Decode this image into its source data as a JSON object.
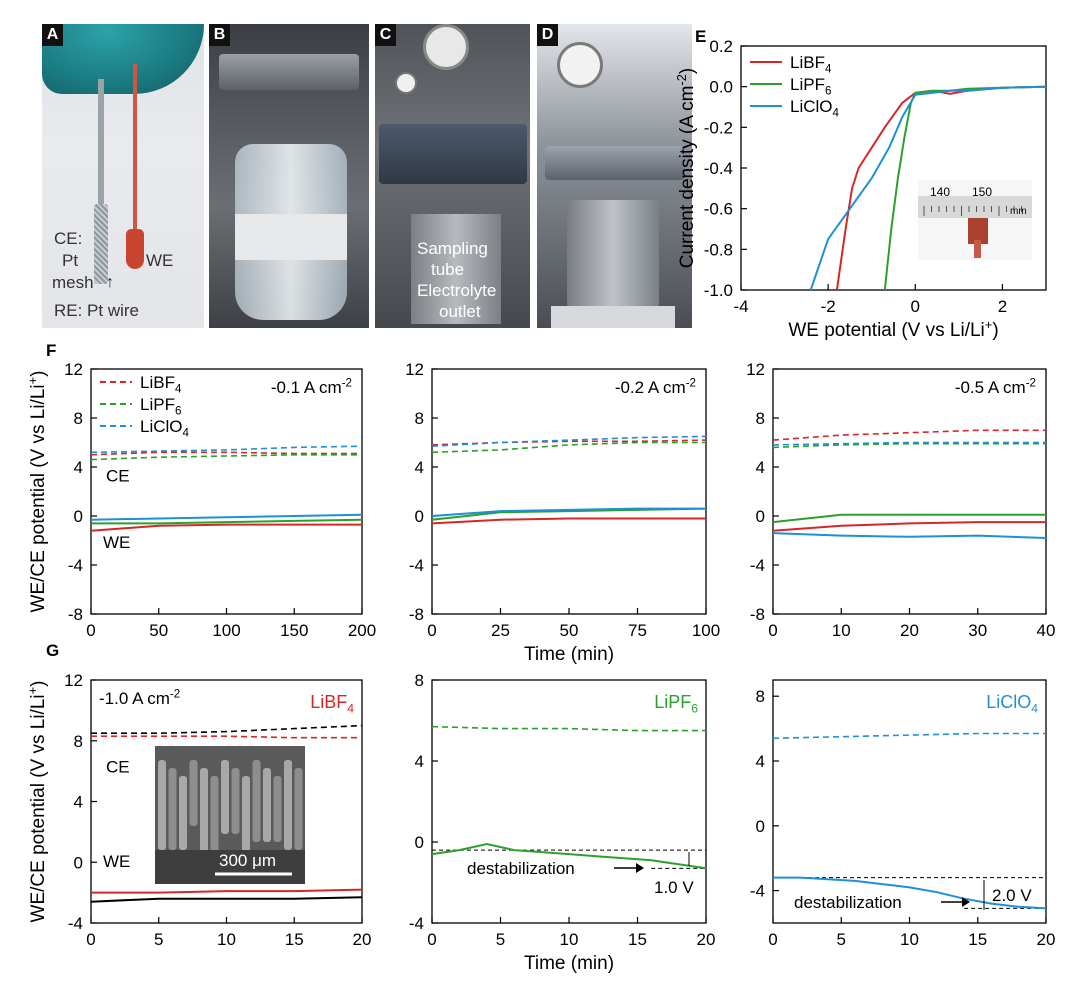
{
  "panel_letters": {
    "A": "A",
    "B": "B",
    "C": "C",
    "D": "D",
    "E": "E",
    "F": "F",
    "G": "G"
  },
  "photo_A": {
    "ce": "CE:",
    "pt": "Pt",
    "mesh": "mesh",
    "we": "WE",
    "re": "RE: Pt wire"
  },
  "photo_C": {
    "l1": "Sampling",
    "l2": "tube",
    "l3": "Electrolyte",
    "l4": "outlet"
  },
  "colors": {
    "LiBF4": "#d62728",
    "LiPF6": "#2ca02c",
    "LiClO4": "#1f8fd6",
    "black": "#000000"
  },
  "chart_data": [
    {
      "id": "E",
      "type": "line",
      "xlabel": "WE potential (V vs Li/Li+)",
      "ylabel": "Current density (A cm-2)",
      "xlim": [
        -4,
        3
      ],
      "ylim": [
        -1.0,
        0.2
      ],
      "xticks": [
        "-4",
        "-2",
        "0",
        "2"
      ],
      "yticks": [
        "0.2",
        "0.0",
        "-0.2",
        "-0.4",
        "-0.6",
        "-0.8",
        "-1.0"
      ],
      "legend": [
        "LiBF4",
        "LiPF6",
        "LiClO4"
      ],
      "inset": {
        "ticks": [
          "140",
          "150"
        ],
        "unit": "mm"
      },
      "series": [
        {
          "name": "LiBF4",
          "x": [
            -1.8,
            -1.6,
            -1.45,
            -1.3,
            -1.0,
            -0.7,
            -0.3,
            0.0,
            0.4,
            0.8,
            1.2,
            2.0,
            3.0
          ],
          "y": [
            -1.0,
            -0.7,
            -0.5,
            -0.4,
            -0.3,
            -0.2,
            -0.08,
            -0.03,
            -0.02,
            -0.035,
            -0.02,
            -0.005,
            0.0
          ]
        },
        {
          "name": "LiPF6",
          "x": [
            -0.7,
            -0.55,
            -0.4,
            -0.25,
            -0.1,
            0.0,
            0.4,
            0.8,
            1.2,
            2.0,
            3.0
          ],
          "y": [
            -1.0,
            -0.7,
            -0.45,
            -0.25,
            -0.08,
            -0.03,
            -0.02,
            -0.02,
            -0.01,
            -0.005,
            0.0
          ]
        },
        {
          "name": "LiClO4",
          "x": [
            -2.4,
            -2.0,
            -1.5,
            -1.0,
            -0.6,
            -0.3,
            0.0,
            0.4,
            0.8,
            1.2,
            2.0,
            3.0
          ],
          "y": [
            -1.0,
            -0.75,
            -0.6,
            -0.45,
            -0.3,
            -0.15,
            -0.04,
            -0.03,
            -0.02,
            -0.02,
            -0.005,
            0.0
          ]
        }
      ]
    },
    {
      "id": "F1",
      "type": "line",
      "annotation": "-0.1 A cm-2",
      "ylabel": "WE/CE potential (V vs Li/Li+)",
      "xlim": [
        0,
        200
      ],
      "ylim": [
        -8,
        12
      ],
      "xticks": [
        "0",
        "50",
        "100",
        "150",
        "200"
      ],
      "yticks": [
        "12",
        "8",
        "4",
        "0",
        "-4",
        "-8"
      ],
      "legend": [
        "LiBF4",
        "LiPF6",
        "LiClO4"
      ],
      "labels": {
        "ce": "CE",
        "we": "WE"
      },
      "series": [
        {
          "name": "LiBF4 CE",
          "x": [
            0,
            50,
            100,
            150,
            200
          ],
          "y": [
            5.0,
            5.2,
            5.2,
            5.1,
            5.1
          ]
        },
        {
          "name": "LiPF6 CE",
          "x": [
            0,
            50,
            100,
            150,
            200
          ],
          "y": [
            4.6,
            4.8,
            4.9,
            5.0,
            5.0
          ]
        },
        {
          "name": "LiClO4 CE",
          "x": [
            0,
            50,
            100,
            150,
            200
          ],
          "y": [
            5.2,
            5.3,
            5.4,
            5.6,
            5.7
          ]
        },
        {
          "name": "LiBF4 WE",
          "x": [
            0,
            50,
            100,
            150,
            200
          ],
          "y": [
            -1.2,
            -0.8,
            -0.7,
            -0.7,
            -0.7
          ]
        },
        {
          "name": "LiPF6 WE",
          "x": [
            0,
            50,
            100,
            150,
            200
          ],
          "y": [
            -0.6,
            -0.6,
            -0.5,
            -0.4,
            -0.3
          ]
        },
        {
          "name": "LiClO4 WE",
          "x": [
            0,
            50,
            100,
            150,
            200
          ],
          "y": [
            -0.3,
            -0.2,
            -0.1,
            0.0,
            0.1
          ]
        }
      ]
    },
    {
      "id": "F2",
      "type": "line",
      "annotation": "-0.2 A cm-2",
      "xlabel": "Time (min)",
      "xlim": [
        0,
        100
      ],
      "ylim": [
        -8,
        12
      ],
      "xticks": [
        "0",
        "25",
        "50",
        "75",
        "100"
      ],
      "yticks": [
        "12",
        "8",
        "4",
        "0",
        "-4",
        "-8"
      ],
      "series": [
        {
          "name": "LiBF4 CE",
          "x": [
            0,
            25,
            50,
            75,
            100
          ],
          "y": [
            5.8,
            6.0,
            6.1,
            6.1,
            6.2
          ]
        },
        {
          "name": "LiPF6 CE",
          "x": [
            0,
            25,
            50,
            75,
            100
          ],
          "y": [
            5.2,
            5.4,
            5.8,
            6.0,
            6.0
          ]
        },
        {
          "name": "LiClO4 CE",
          "x": [
            0,
            25,
            50,
            75,
            100
          ],
          "y": [
            5.7,
            6.0,
            6.2,
            6.4,
            6.5
          ]
        },
        {
          "name": "LiBF4 WE",
          "x": [
            0,
            25,
            50,
            75,
            100
          ],
          "y": [
            -0.6,
            -0.3,
            -0.2,
            -0.2,
            -0.2
          ]
        },
        {
          "name": "LiPF6 WE",
          "x": [
            0,
            25,
            50,
            75,
            100
          ],
          "y": [
            -0.3,
            0.3,
            0.4,
            0.5,
            0.6
          ]
        },
        {
          "name": "LiClO4 WE",
          "x": [
            0,
            25,
            50,
            75,
            100
          ],
          "y": [
            0.0,
            0.4,
            0.5,
            0.6,
            0.6
          ]
        }
      ]
    },
    {
      "id": "F3",
      "type": "line",
      "annotation": "-0.5 A cm-2",
      "xlim": [
        0,
        40
      ],
      "ylim": [
        -8,
        12
      ],
      "xticks": [
        "0",
        "10",
        "20",
        "30",
        "40"
      ],
      "yticks": [
        "12",
        "8",
        "4",
        "0",
        "-4",
        "-8"
      ],
      "series": [
        {
          "name": "LiBF4 CE",
          "x": [
            0,
            10,
            20,
            30,
            40
          ],
          "y": [
            6.2,
            6.6,
            6.8,
            7.0,
            7.0
          ]
        },
        {
          "name": "LiPF6 CE",
          "x": [
            0,
            10,
            20,
            30,
            40
          ],
          "y": [
            5.6,
            5.8,
            5.9,
            5.9,
            5.9
          ]
        },
        {
          "name": "LiClO4 CE",
          "x": [
            0,
            10,
            20,
            30,
            40
          ],
          "y": [
            5.8,
            5.9,
            6.0,
            6.0,
            6.0
          ]
        },
        {
          "name": "LiBF4 WE",
          "x": [
            0,
            10,
            20,
            30,
            40
          ],
          "y": [
            -1.2,
            -0.8,
            -0.6,
            -0.5,
            -0.5
          ]
        },
        {
          "name": "LiPF6 WE",
          "x": [
            0,
            10,
            20,
            30,
            40
          ],
          "y": [
            -0.5,
            0.1,
            0.1,
            0.1,
            0.1
          ]
        },
        {
          "name": "LiClO4 WE",
          "x": [
            0,
            10,
            20,
            30,
            40
          ],
          "y": [
            -1.4,
            -1.6,
            -1.7,
            -1.6,
            -1.8
          ]
        }
      ]
    },
    {
      "id": "G1",
      "type": "line",
      "annotation": "-1.0 A cm-2",
      "title": "LiBF4",
      "ylabel": "WE/CE potential (V vs Li/Li+)",
      "xlim": [
        0,
        20
      ],
      "ylim": [
        -4,
        12
      ],
      "xticks": [
        "0",
        "5",
        "10",
        "15",
        "20"
      ],
      "yticks": [
        "12",
        "8",
        "4",
        "0",
        "-4"
      ],
      "labels": {
        "ce": "CE",
        "we": "WE"
      },
      "inset": {
        "scalebar": "300 μm"
      },
      "series": [
        {
          "name": "CE red",
          "x": [
            0,
            5,
            10,
            15,
            20
          ],
          "y": [
            8.3,
            8.3,
            8.3,
            8.2,
            8.2
          ]
        },
        {
          "name": "CE black",
          "x": [
            0,
            5,
            10,
            15,
            20
          ],
          "y": [
            8.5,
            8.5,
            8.6,
            8.8,
            9.0
          ]
        },
        {
          "name": "WE red",
          "x": [
            0,
            5,
            10,
            15,
            20
          ],
          "y": [
            -2.0,
            -2.0,
            -1.9,
            -1.9,
            -1.8
          ]
        },
        {
          "name": "WE black",
          "x": [
            0,
            5,
            10,
            15,
            20
          ],
          "y": [
            -2.6,
            -2.4,
            -2.4,
            -2.4,
            -2.3
          ]
        }
      ]
    },
    {
      "id": "G2",
      "type": "line",
      "title": "LiPF6",
      "xlabel": "Time (min)",
      "xlim": [
        0,
        20
      ],
      "ylim": [
        -4,
        8
      ],
      "xticks": [
        "0",
        "5",
        "10",
        "15",
        "20"
      ],
      "yticks": [
        "8",
        "4",
        "0",
        "-4"
      ],
      "annotations": {
        "destab": "destabilization",
        "delta": "1.0 V"
      },
      "series": [
        {
          "name": "CE",
          "x": [
            0,
            5,
            10,
            15,
            20
          ],
          "y": [
            5.7,
            5.6,
            5.6,
            5.5,
            5.5
          ]
        },
        {
          "name": "WE",
          "x": [
            0,
            2,
            4,
            6,
            8,
            10,
            12,
            14,
            16,
            18,
            20
          ],
          "y": [
            -0.6,
            -0.4,
            -0.1,
            -0.4,
            -0.5,
            -0.6,
            -0.7,
            -0.8,
            -0.9,
            -1.1,
            -1.3
          ]
        }
      ]
    },
    {
      "id": "G3",
      "type": "line",
      "title": "LiClO4",
      "xlim": [
        0,
        20
      ],
      "ylim": [
        -6,
        9
      ],
      "xticks": [
        "0",
        "5",
        "10",
        "15",
        "20"
      ],
      "yticks": [
        "8",
        "4",
        "0",
        "-4"
      ],
      "annotations": {
        "destab": "destabilization",
        "delta": "2.0 V"
      },
      "series": [
        {
          "name": "CE",
          "x": [
            0,
            5,
            10,
            15,
            20
          ],
          "y": [
            5.4,
            5.5,
            5.6,
            5.7,
            5.7
          ]
        },
        {
          "name": "WE",
          "x": [
            0,
            2,
            4,
            6,
            8,
            10,
            12,
            14,
            16,
            18,
            20
          ],
          "y": [
            -3.2,
            -3.2,
            -3.3,
            -3.4,
            -3.6,
            -3.8,
            -4.1,
            -4.5,
            -4.8,
            -5.0,
            -5.1
          ]
        }
      ]
    }
  ]
}
